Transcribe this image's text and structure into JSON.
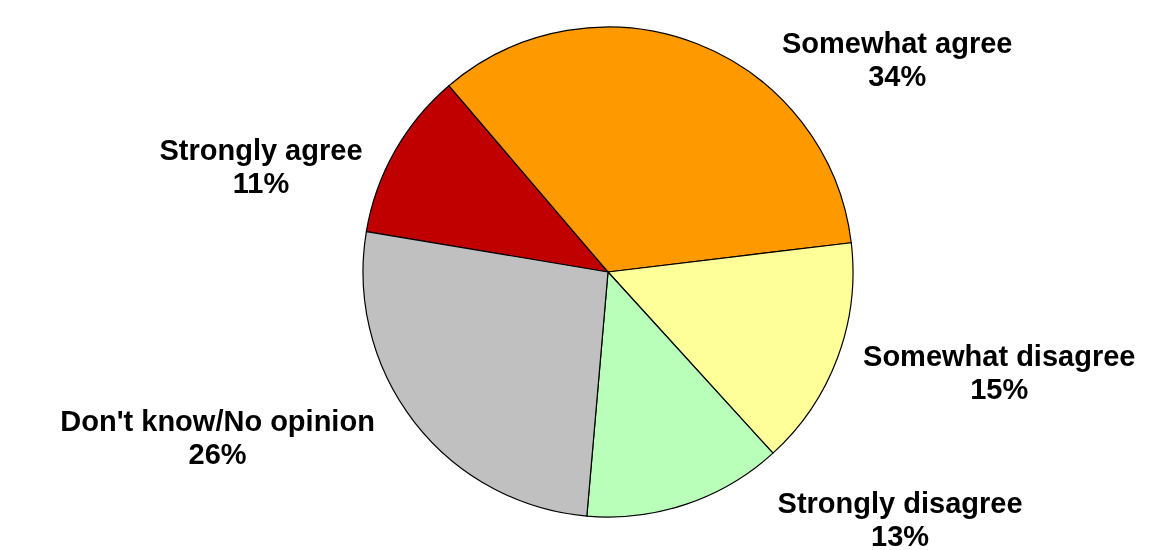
{
  "chart_data": {
    "type": "pie",
    "categories": [
      "Strongly agree",
      "Somewhat agree",
      "Somewhat disagree",
      "Strongly disagree",
      "Don't know/No opinion"
    ],
    "values": [
      11,
      34,
      15,
      13,
      26
    ],
    "value_labels": [
      "11%",
      "34%",
      "15%",
      "13%",
      "26%"
    ],
    "colors": [
      "#c00000",
      "#ff9900",
      "#ffff99",
      "#b9ffb9",
      "#c0c0c0"
    ]
  }
}
